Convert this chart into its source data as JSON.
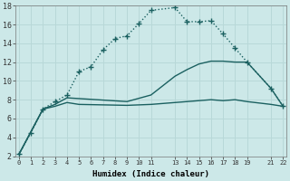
{
  "xlabel": "Humidex (Indice chaleur)",
  "background_color": "#cce8e8",
  "grid_color": "#b8d8d8",
  "line_color": "#1a6060",
  "ylim": [
    2,
    18
  ],
  "xlim": [
    -0.3,
    22.3
  ],
  "series": [
    {
      "x": [
        0,
        1,
        2,
        3,
        4,
        5,
        6,
        7,
        8,
        9,
        10,
        11,
        13,
        14,
        15,
        16,
        17,
        18,
        19,
        21,
        22
      ],
      "y": [
        2.2,
        4.5,
        7.0,
        7.8,
        8.5,
        11.0,
        11.5,
        13.3,
        14.5,
        14.8,
        16.1,
        17.5,
        17.8,
        16.3,
        16.3,
        16.4,
        15.0,
        13.5,
        12.0,
        9.2,
        7.3
      ],
      "style": "dotted",
      "marker": "+",
      "markersize": 5,
      "linewidth": 1.0
    },
    {
      "x": [
        0,
        2,
        3,
        4,
        9,
        11,
        13,
        14,
        15,
        16,
        17,
        18,
        19,
        21,
        22
      ],
      "y": [
        2.2,
        7.0,
        7.5,
        8.2,
        7.8,
        8.5,
        10.5,
        11.2,
        11.8,
        12.1,
        12.1,
        12.0,
        12.0,
        9.2,
        7.3
      ],
      "style": "solid",
      "marker": null,
      "markersize": 0,
      "linewidth": 1.0
    },
    {
      "x": [
        0,
        2,
        3,
        4,
        5,
        9,
        11,
        13,
        14,
        15,
        16,
        17,
        18,
        19,
        21,
        22
      ],
      "y": [
        2.2,
        7.0,
        7.3,
        7.7,
        7.5,
        7.4,
        7.5,
        7.7,
        7.8,
        7.9,
        8.0,
        7.9,
        8.0,
        7.8,
        7.5,
        7.3
      ],
      "style": "solid",
      "marker": null,
      "markersize": 0,
      "linewidth": 1.0
    }
  ],
  "xtick_positions": [
    0,
    1,
    2,
    3,
    4,
    5,
    6,
    7,
    8,
    9,
    10,
    11,
    13,
    14,
    15,
    16,
    17,
    18,
    19,
    21,
    22
  ],
  "xtick_labels": [
    "0",
    "1",
    "2",
    "3",
    "4",
    "5",
    "6",
    "7",
    "8",
    "9",
    "10",
    "11",
    "13",
    "14",
    "15",
    "16",
    "17",
    "18",
    "19",
    "21",
    "22"
  ],
  "ytick_positions": [
    2,
    4,
    6,
    8,
    10,
    12,
    14,
    16,
    18
  ],
  "ytick_labels": [
    "2",
    "4",
    "6",
    "8",
    "10",
    "12",
    "14",
    "16",
    "18"
  ]
}
